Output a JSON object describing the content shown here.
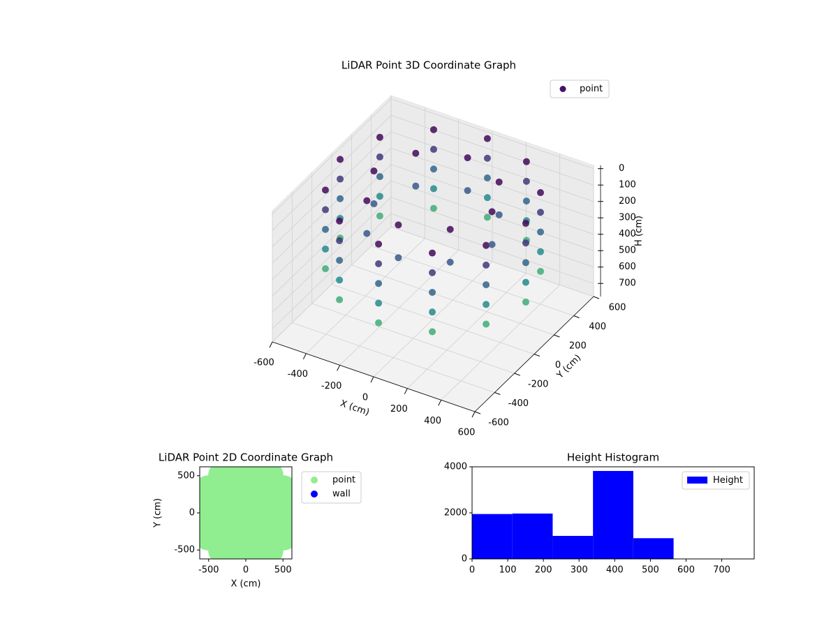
{
  "chart_data": [
    {
      "type": "scatter3d",
      "title": "LiDAR Point 3D Coordinate Graph",
      "xlabel": "X (cm)",
      "ylabel": "Y (cm)",
      "zlabel": "H (cm)",
      "xlim": [
        -600,
        600
      ],
      "ylim": [
        -600,
        600
      ],
      "zlim": [
        780,
        -20
      ],
      "xticks": [
        -600,
        -400,
        -200,
        0,
        200,
        400,
        600
      ],
      "yticks": [
        -600,
        -400,
        -200,
        0,
        200,
        400,
        600
      ],
      "zticks": [
        0,
        100,
        200,
        300,
        400,
        500,
        600,
        700
      ],
      "colormap": "viridis",
      "legend": "upper right",
      "series": [
        {
          "name": "point",
          "color": "#45136a",
          "x": [
            550,
            476,
            275,
            0,
            -275,
            -476,
            -550,
            -476,
            -275,
            0,
            275,
            476,
            550,
            476,
            275,
            0,
            -275,
            -476,
            -550,
            -476,
            -275,
            0,
            275,
            476,
            550,
            476,
            275,
            0,
            -275,
            -476,
            -550,
            -476,
            -275,
            0,
            275,
            476,
            550,
            476,
            275,
            0,
            -275,
            -476,
            -550,
            -476,
            -275,
            0,
            275,
            476,
            550,
            476,
            275,
            0,
            -275,
            -476,
            -550,
            -476,
            -275,
            0,
            275,
            476,
            350,
            247,
            0,
            -247,
            -350,
            -247,
            0,
            247,
            350,
            247,
            0,
            -247,
            -350,
            -247,
            0,
            247
          ],
          "y": [
            0,
            275,
            476,
            550,
            476,
            275,
            0,
            -275,
            -476,
            -550,
            -476,
            -275,
            0,
            275,
            476,
            550,
            476,
            275,
            0,
            -275,
            -476,
            -550,
            -476,
            -275,
            0,
            275,
            476,
            550,
            476,
            275,
            0,
            -275,
            -476,
            -550,
            -476,
            -275,
            0,
            275,
            476,
            550,
            476,
            275,
            0,
            -275,
            -476,
            -550,
            -476,
            -275,
            0,
            275,
            476,
            550,
            476,
            275,
            0,
            -275,
            -476,
            -550,
            -476,
            -275,
            0,
            247,
            350,
            247,
            0,
            -247,
            -350,
            -247,
            0,
            247,
            350,
            247,
            0,
            -247,
            -350,
            -247
          ],
          "z": [
            480,
            480,
            480,
            480,
            480,
            480,
            480,
            480,
            480,
            480,
            480,
            480,
            360,
            360,
            360,
            360,
            360,
            360,
            360,
            360,
            360,
            360,
            360,
            360,
            240,
            240,
            240,
            240,
            240,
            240,
            240,
            240,
            240,
            240,
            240,
            240,
            120,
            120,
            120,
            120,
            120,
            120,
            120,
            120,
            120,
            120,
            120,
            120,
            0,
            0,
            0,
            0,
            0,
            0,
            0,
            0,
            0,
            0,
            0,
            0,
            200,
            200,
            200,
            200,
            200,
            200,
            200,
            200,
            0,
            0,
            0,
            0,
            0,
            0,
            0,
            0
          ]
        }
      ]
    },
    {
      "type": "scatter",
      "title": "LiDAR Point 2D Coordinate Graph",
      "xlabel": "X (cm)",
      "ylabel": "Y (cm)",
      "xlim": [
        -620,
        620
      ],
      "ylim": [
        -620,
        620
      ],
      "xticks": [
        -500,
        0,
        500
      ],
      "yticks": [
        -500,
        0,
        500
      ],
      "legend": "outside right",
      "series": [
        {
          "name": "point",
          "color": "#90ee90",
          "x": [
            -300,
            -100,
            100,
            300,
            -500,
            -300,
            -100,
            100,
            300,
            500,
            -500,
            -300,
            -100,
            100,
            300,
            500,
            -500,
            -300,
            -100,
            100,
            300,
            500,
            -500,
            -300,
            -100,
            100,
            300,
            500,
            -300,
            -100,
            100,
            300
          ],
          "y": [
            500,
            500,
            500,
            500,
            300,
            300,
            300,
            300,
            300,
            300,
            100,
            100,
            100,
            100,
            100,
            100,
            -100,
            -100,
            -100,
            -100,
            -100,
            -100,
            -300,
            -300,
            -300,
            -300,
            -300,
            -300,
            -500,
            -500,
            -500,
            -500
          ]
        },
        {
          "name": "wall",
          "color": "#0000ff",
          "x": [],
          "y": []
        }
      ]
    },
    {
      "type": "histogram",
      "title": "Height Histogram",
      "bins": [
        0,
        113,
        226,
        339,
        452,
        565,
        678,
        791
      ],
      "xlim": [
        0,
        791
      ],
      "ylim": [
        0,
        4000
      ],
      "xticks": [
        0,
        100,
        200,
        300,
        400,
        500,
        600,
        700
      ],
      "yticks": [
        0,
        2000,
        4000
      ],
      "legend": "upper right",
      "series": [
        {
          "name": "Height",
          "color": "#0000ff",
          "values": [
            1950,
            1970,
            1000,
            3820,
            900,
            0,
            1
          ]
        }
      ]
    }
  ]
}
